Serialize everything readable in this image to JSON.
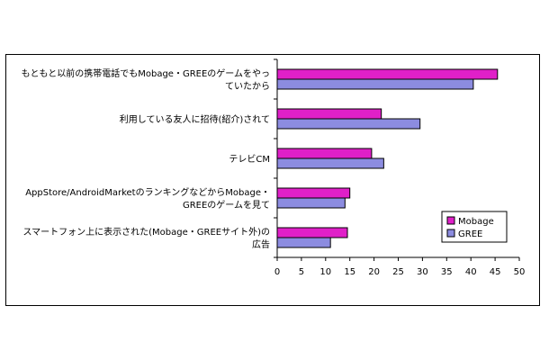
{
  "chart_data": {
    "type": "bar",
    "orientation": "horizontal",
    "categories": [
      [
        "もともと以前の携帯電話でもMobage・GREEのゲームをやっ",
        "ていたから"
      ],
      [
        "利用している友人に招待(紹介)されて"
      ],
      [
        "テレビCM"
      ],
      [
        "AppStore/AndroidMarketのランキングなどからMobage・",
        "GREEのゲームを見て"
      ],
      [
        "スマートフォン上に表示された(Mobage・GREEサイト外)の",
        "広告"
      ]
    ],
    "series": [
      {
        "name": "Mobage",
        "color": "#e020c8",
        "values": [
          45.5,
          21.5,
          19.5,
          15,
          14.5
        ]
      },
      {
        "name": "GREE",
        "color": "#8c8ce0",
        "values": [
          40.5,
          29.5,
          22,
          14,
          11
        ]
      }
    ],
    "xlim": [
      0,
      50
    ],
    "xticks": [
      0,
      5,
      10,
      15,
      20,
      25,
      30,
      35,
      40,
      45,
      50
    ],
    "grid": false,
    "legend_position": "bottom-right"
  }
}
